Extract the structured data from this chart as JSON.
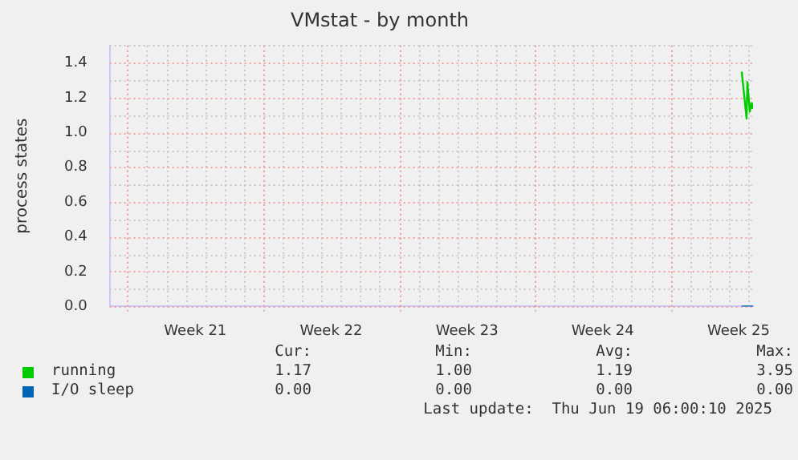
{
  "chart_data": {
    "type": "line",
    "title": "VMstat - by month",
    "ylabel": "process states",
    "xlim": [
      "2025-05-17T02:00",
      "2025-06-19T06:00"
    ],
    "xticks": [
      {
        "value": "2025-05-18",
        "label": null
      },
      {
        "value": "2025-05-21T12:00",
        "label": "Week 21"
      },
      {
        "value": "2025-05-25",
        "label": null
      },
      {
        "value": "2025-05-28T12:00",
        "label": "Week 22"
      },
      {
        "value": "2025-06-01",
        "label": null
      },
      {
        "value": "2025-06-04T12:00",
        "label": "Week 23"
      },
      {
        "value": "2025-06-08",
        "label": null
      },
      {
        "value": "2025-06-11T12:00",
        "label": "Week 24"
      },
      {
        "value": "2025-06-15",
        "label": null
      },
      {
        "value": "2025-06-18T12:00",
        "label": "Week 25"
      }
    ],
    "ylim": [
      0,
      1.5
    ],
    "yticks": [
      {
        "value": 0,
        "label": "0.0"
      },
      {
        "value": 0.2,
        "label": "0.2"
      },
      {
        "value": 0.4,
        "label": "0.4"
      },
      {
        "value": 0.6,
        "label": "0.6"
      },
      {
        "value": 0.8,
        "label": "0.8"
      },
      {
        "value": 1,
        "label": "1.0"
      },
      {
        "value": 1.2,
        "label": "1.2"
      },
      {
        "value": 1.4,
        "label": "1.4"
      }
    ],
    "grid": true,
    "legend": "bottom",
    "marker": "none",
    "line_style": "solid",
    "x": [
      "2025-06-18T16:00",
      "2025-06-18T22:00",
      "2025-06-18T23:00",
      "2025-06-19T02:00",
      "2025-06-19T04:00",
      "2025-06-19T05:00",
      "2025-06-19T06:00"
    ],
    "series": [
      {
        "name": "running",
        "color": "#00cc00",
        "values": [
          1.35,
          1.08,
          1.29,
          1.12,
          1.17,
          1.14,
          1.17
        ]
      },
      {
        "name": "I/O sleep",
        "color": "#0066b3",
        "values": [
          0,
          0,
          0,
          0,
          0,
          0,
          0
        ]
      }
    ],
    "annotations": [
      "Cur:",
      "Min:",
      "Avg:",
      "Max:",
      "1.17",
      "1.00",
      "1.19",
      "3.95",
      "0.00",
      "0.00",
      "0.00",
      "0.00",
      "Last update:  Thu Jun 19 06:00:10 2025"
    ]
  }
}
